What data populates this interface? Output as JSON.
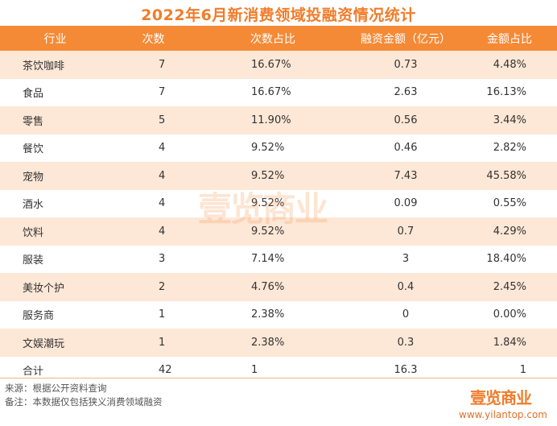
{
  "title": "2022年6月新消费领域投融资情况统计",
  "headers": [
    "行业",
    "次数",
    "次数占比",
    "融资金额（亿元）",
    "金额占比"
  ],
  "rows": [
    [
      "茶饮咖啡",
      "7",
      "16.67%",
      "0.73",
      "4.48%"
    ],
    [
      "食品",
      "7",
      "16.67%",
      "2.63",
      "16.13%"
    ],
    [
      "零售",
      "5",
      "11.90%",
      "0.56",
      "3.44%"
    ],
    [
      "餐饮",
      "4",
      "9.52%",
      "0.46",
      "2.82%"
    ],
    [
      "宠物",
      "4",
      "9.52%",
      "7.43",
      "45.58%"
    ],
    [
      "酒水",
      "4",
      "9.52%",
      "0.09",
      "0.55%"
    ],
    [
      "饮料",
      "4",
      "9.52%",
      "0.7",
      "4.29%"
    ],
    [
      "服装",
      "3",
      "7.14%",
      "3",
      "18.40%"
    ],
    [
      "美妆个护",
      "2",
      "4.76%",
      "0.4",
      "2.45%"
    ],
    [
      "服务商",
      "1",
      "2.38%",
      "0",
      "0.00%"
    ],
    [
      "文娱潮玩",
      "1",
      "2.38%",
      "0.3",
      "1.84%"
    ],
    [
      "合计",
      "42",
      "1",
      "16.3",
      "1"
    ]
  ],
  "footer": {
    "source": "来源：根据公开资料查询",
    "note": "备注：本数据仅包括狭义消费领域融资"
  },
  "brand": {
    "logo": "壹览商业",
    "url": "www.yilantop.com",
    "watermark": "壹览商业"
  },
  "colors": {
    "accent": "#f58a36",
    "row_tint": "#fde7d6"
  }
}
